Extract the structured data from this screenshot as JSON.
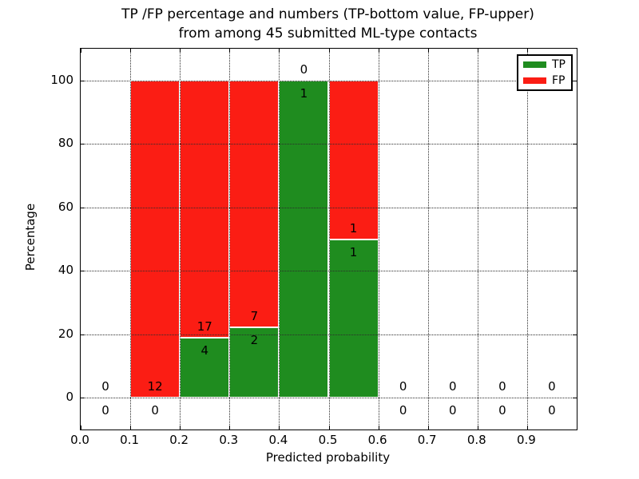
{
  "chart_data": {
    "type": "bar",
    "stacked": true,
    "title_line1": "TP /FP percentage and numbers (TP-bottom value, FP-upper)",
    "title_line2": "from among 45 submitted ML-type contacts",
    "xlabel": "Predicted probability",
    "ylabel": "Percentage",
    "xlim": [
      0.0,
      1.0
    ],
    "ylim": [
      -10,
      110
    ],
    "xticks": [
      {
        "value": 0.0,
        "label": "0.0"
      },
      {
        "value": 0.1,
        "label": "0.1"
      },
      {
        "value": 0.2,
        "label": "0.2"
      },
      {
        "value": 0.3,
        "label": "0.3"
      },
      {
        "value": 0.4,
        "label": "0.4"
      },
      {
        "value": 0.5,
        "label": "0.5"
      },
      {
        "value": 0.6,
        "label": "0.6"
      },
      {
        "value": 0.7,
        "label": "0.7"
      },
      {
        "value": 0.8,
        "label": "0.8"
      },
      {
        "value": 0.9,
        "label": "0.9"
      }
    ],
    "yticks": [
      {
        "value": 0,
        "label": "0"
      },
      {
        "value": 20,
        "label": "20"
      },
      {
        "value": 40,
        "label": "40"
      },
      {
        "value": 60,
        "label": "60"
      },
      {
        "value": 80,
        "label": "80"
      },
      {
        "value": 100,
        "label": "100"
      }
    ],
    "grid": {
      "visible": true,
      "style": "dotted",
      "drawn_over_bars": true
    },
    "total_contacts": 45,
    "legend": {
      "position": "upper-right",
      "items": [
        {
          "label": "TP",
          "color": "#1f8c1f"
        },
        {
          "label": "FP",
          "color": "#fb1d14"
        }
      ]
    },
    "bins": [
      {
        "range": [
          0.0,
          0.1
        ],
        "tp_count": 0,
        "fp_count": 0,
        "tp_pct": 0,
        "fp_pct": 0
      },
      {
        "range": [
          0.1,
          0.2
        ],
        "tp_count": 0,
        "fp_count": 12,
        "tp_pct": 0,
        "fp_pct": 100
      },
      {
        "range": [
          0.2,
          0.3
        ],
        "tp_count": 4,
        "fp_count": 17,
        "tp_pct": 19.05,
        "fp_pct": 80.95
      },
      {
        "range": [
          0.3,
          0.4
        ],
        "tp_count": 2,
        "fp_count": 7,
        "tp_pct": 22.22,
        "fp_pct": 77.78
      },
      {
        "range": [
          0.4,
          0.5
        ],
        "tp_count": 1,
        "fp_count": 0,
        "tp_pct": 100,
        "fp_pct": 0
      },
      {
        "range": [
          0.5,
          0.6
        ],
        "tp_count": 1,
        "fp_count": 1,
        "tp_pct": 50,
        "fp_pct": 50
      },
      {
        "range": [
          0.6,
          0.7
        ],
        "tp_count": 0,
        "fp_count": 0,
        "tp_pct": 0,
        "fp_pct": 0
      },
      {
        "range": [
          0.7,
          0.8
        ],
        "tp_count": 0,
        "fp_count": 0,
        "tp_pct": 0,
        "fp_pct": 0
      },
      {
        "range": [
          0.8,
          0.9
        ],
        "tp_count": 0,
        "fp_count": 0,
        "tp_pct": 0,
        "fp_pct": 0
      },
      {
        "range": [
          0.9,
          1.0
        ],
        "tp_count": 0,
        "fp_count": 0,
        "tp_pct": 0,
        "fp_pct": 0
      }
    ],
    "colors": {
      "tp": "#1f8c1f",
      "fp": "#fb1d14",
      "grid": "#2b2b2b",
      "text": "#000000",
      "background": "#ffffff"
    }
  }
}
